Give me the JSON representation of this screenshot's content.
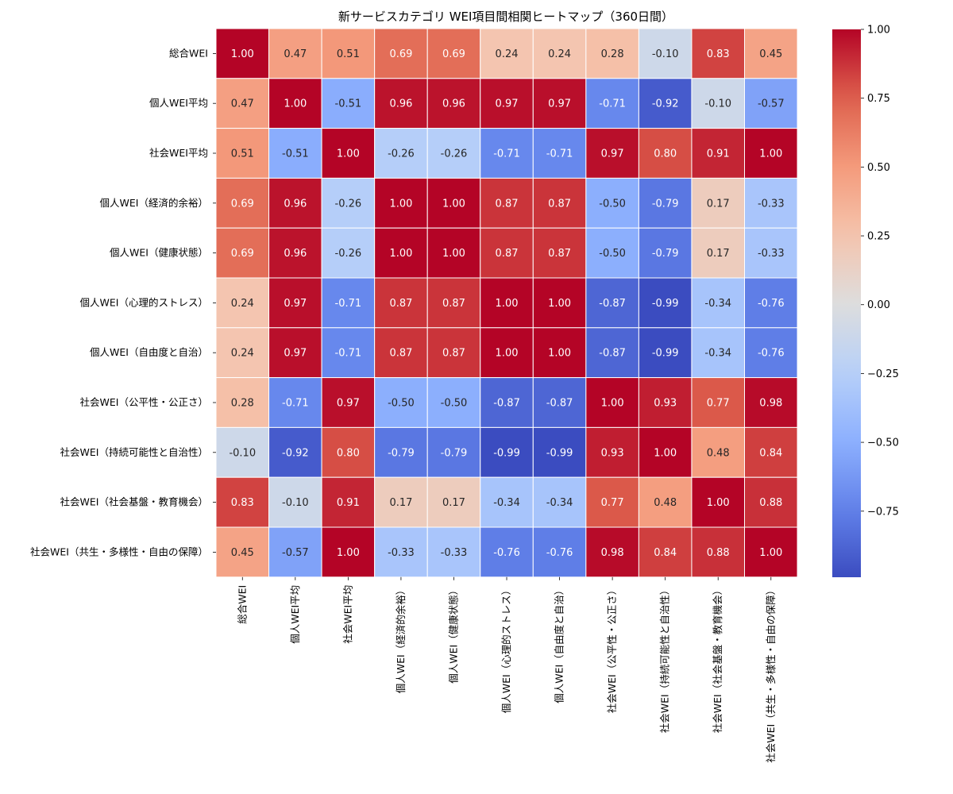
{
  "chart_data": {
    "type": "heatmap",
    "title": "新サービスカテゴリ WEI項目間相関ヒートマップ（360日間）",
    "labels": [
      "総合WEI",
      "個人WEI平均",
      "社会WEI平均",
      "個人WEI（経済的余裕）",
      "個人WEI（健康状態）",
      "個人WEI（心理的ストレス）",
      "個人WEI（自由度と自治）",
      "社会WEI（公平性・公正さ）",
      "社会WEI（持続可能性と自治性）",
      "社会WEI（社会基盤・教育機会）",
      "社会WEI（共生・多様性・自由の保障）"
    ],
    "matrix": [
      [
        1.0,
        0.47,
        0.51,
        0.69,
        0.69,
        0.24,
        0.24,
        0.28,
        -0.1,
        0.83,
        0.45
      ],
      [
        0.47,
        1.0,
        -0.51,
        0.96,
        0.96,
        0.97,
        0.97,
        -0.71,
        -0.92,
        -0.1,
        -0.57
      ],
      [
        0.51,
        -0.51,
        1.0,
        -0.26,
        -0.26,
        -0.71,
        -0.71,
        0.97,
        0.8,
        0.91,
        1.0
      ],
      [
        0.69,
        0.96,
        -0.26,
        1.0,
        1.0,
        0.87,
        0.87,
        -0.5,
        -0.79,
        0.17,
        -0.33
      ],
      [
        0.69,
        0.96,
        -0.26,
        1.0,
        1.0,
        0.87,
        0.87,
        -0.5,
        -0.79,
        0.17,
        -0.33
      ],
      [
        0.24,
        0.97,
        -0.71,
        0.87,
        0.87,
        1.0,
        1.0,
        -0.87,
        -0.99,
        -0.34,
        -0.76
      ],
      [
        0.24,
        0.97,
        -0.71,
        0.87,
        0.87,
        1.0,
        1.0,
        -0.87,
        -0.99,
        -0.34,
        -0.76
      ],
      [
        0.28,
        -0.71,
        0.97,
        -0.5,
        -0.5,
        -0.87,
        -0.87,
        1.0,
        0.93,
        0.77,
        0.98
      ],
      [
        -0.1,
        -0.92,
        0.8,
        -0.79,
        -0.79,
        -0.99,
        -0.99,
        0.93,
        1.0,
        0.48,
        0.84
      ],
      [
        0.83,
        -0.1,
        0.91,
        0.17,
        0.17,
        -0.34,
        -0.34,
        0.77,
        0.48,
        1.0,
        0.88
      ],
      [
        0.45,
        -0.57,
        1.0,
        -0.33,
        -0.33,
        -0.76,
        -0.76,
        0.98,
        0.84,
        0.88,
        1.0
      ]
    ],
    "colormap": "coolwarm",
    "vmin": -0.99,
    "vmax": 1.0,
    "colorbar_ticks": [
      1.0,
      0.75,
      0.5,
      0.25,
      0.0,
      -0.25,
      -0.5,
      -0.75
    ],
    "colorbar_tick_labels": [
      "1.00",
      "0.75",
      "0.50",
      "0.25",
      "0.00",
      "−0.25",
      "−0.50",
      "−0.75"
    ],
    "annotation_format": "0.00"
  }
}
